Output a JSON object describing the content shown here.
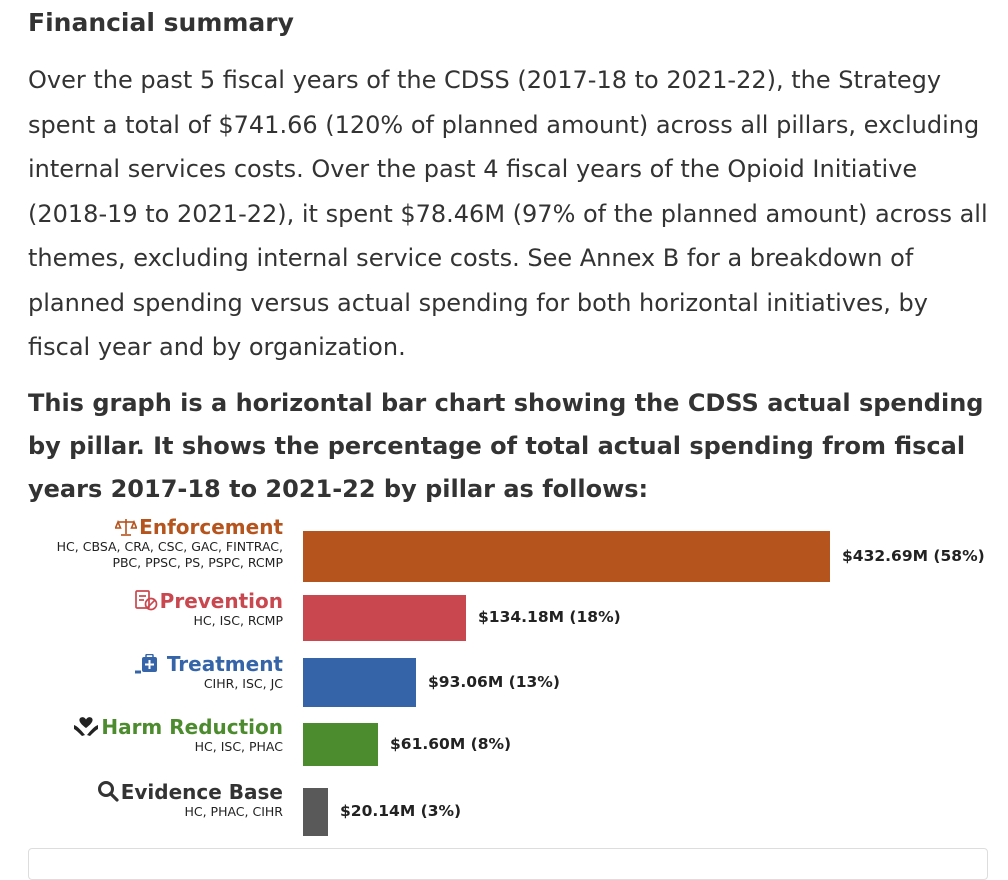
{
  "section": {
    "heading": "Financial summary",
    "paragraph": "Over the past 5 fiscal years of the CDSS (2017-18 to 2021-22), the Strategy spent a total of $741.66 (120% of planned amount) across all pillars, excluding internal services costs. Over the past 4 fiscal years of the Opioid Initiative (2018-19 to 2021-22), it spent $78.46M (97% of the planned amount) across all themes, excluding internal service costs. See Annex B for a breakdown of planned spending versus actual spending for both horizontal initiatives, by fiscal year and by organization.",
    "chart_caption": "This graph is a horizontal bar chart showing the CDSS actual spending by pillar. It shows the percentage of total actual spending from fiscal years 2017-18 to 2021-22 by pillar as follows:"
  },
  "chart_data": {
    "type": "bar",
    "orientation": "horizontal",
    "title": "CDSS actual spending by pillar, 2017-18 to 2021-22",
    "units": "$M",
    "categories": [
      "Enforcement",
      "Prevention",
      "Treatment",
      "Harm Reduction",
      "Evidence Base"
    ],
    "values": [
      432.69,
      134.18,
      93.06,
      61.6,
      20.14
    ],
    "xlim": [
      0,
      432.69
    ],
    "bars": [
      {
        "name": "Enforcement",
        "orgs_lines": [
          "HC, CBSA, CRA, CSC, GAC, FINTRAC,",
          "PBC, PPSC, PS, PSPC, RCMP"
        ],
        "value": 432.69,
        "label": "$432.69M (58%)",
        "color": "#b5541d",
        "icon": "scales-icon"
      },
      {
        "name": "Prevention",
        "orgs_lines": [
          "HC, ISC, RCMP"
        ],
        "value": 134.18,
        "label": "$134.18M (18%)",
        "color": "#c9474e",
        "icon": "prevention-document-icon"
      },
      {
        "name": "Treatment",
        "orgs_lines": [
          "CIHR, ISC, JC"
        ],
        "value": 93.06,
        "label": "$93.06M (13%)",
        "color": "#3565a8",
        "icon": "medical-kit-icon"
      },
      {
        "name": "Harm Reduction",
        "orgs_lines": [
          "HC, ISC, PHAC"
        ],
        "value": 61.6,
        "label": "$61.60M (8%)",
        "color": "#4d8c2e",
        "icon": "hands-heart-icon"
      },
      {
        "name": "Evidence Base",
        "orgs_lines": [
          "HC, PHAC, CIHR"
        ],
        "value": 20.14,
        "label": "$20.14M (3%)",
        "color": "#595959",
        "icon": "magnifier-icon"
      }
    ]
  }
}
